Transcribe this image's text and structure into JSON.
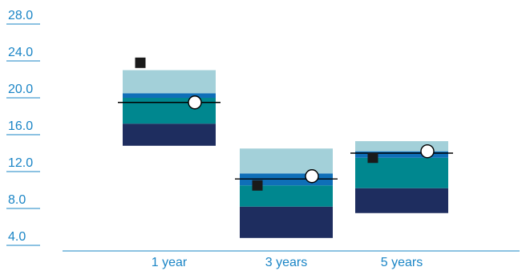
{
  "chart_data": {
    "type": "floating-bar",
    "title": "",
    "xlabel": "",
    "ylabel": "",
    "ylim": [
      4.0,
      28.0
    ],
    "yticks": [
      "28.0",
      "24.0",
      "20.0",
      "16.0",
      "12.0",
      "8.0",
      "4.0"
    ],
    "categories": [
      "1 year",
      "3 years",
      "5 years"
    ],
    "bands": [
      {
        "segments": [
          14.8,
          17.2,
          20.0,
          20.5,
          23.0
        ]
      },
      {
        "segments": [
          4.8,
          8.2,
          10.5,
          11.8,
          14.5
        ]
      },
      {
        "segments": [
          7.5,
          10.2,
          13.5,
          14.2,
          15.3
        ]
      }
    ],
    "reference_line": [
      19.5,
      11.2,
      14.0
    ],
    "circle_marker": [
      19.5,
      11.5,
      14.2
    ],
    "square_marker": [
      23.8,
      10.5,
      13.5
    ],
    "colors": {
      "band_bottom": "#1e2d5f",
      "band_lower_mid": "#00878f",
      "band_mid_blue": "#0f6fb8",
      "band_top": "#a3d0d9",
      "axis": "#1a85c6",
      "ref_line": "#000000",
      "square": "#1a1a1a"
    }
  }
}
